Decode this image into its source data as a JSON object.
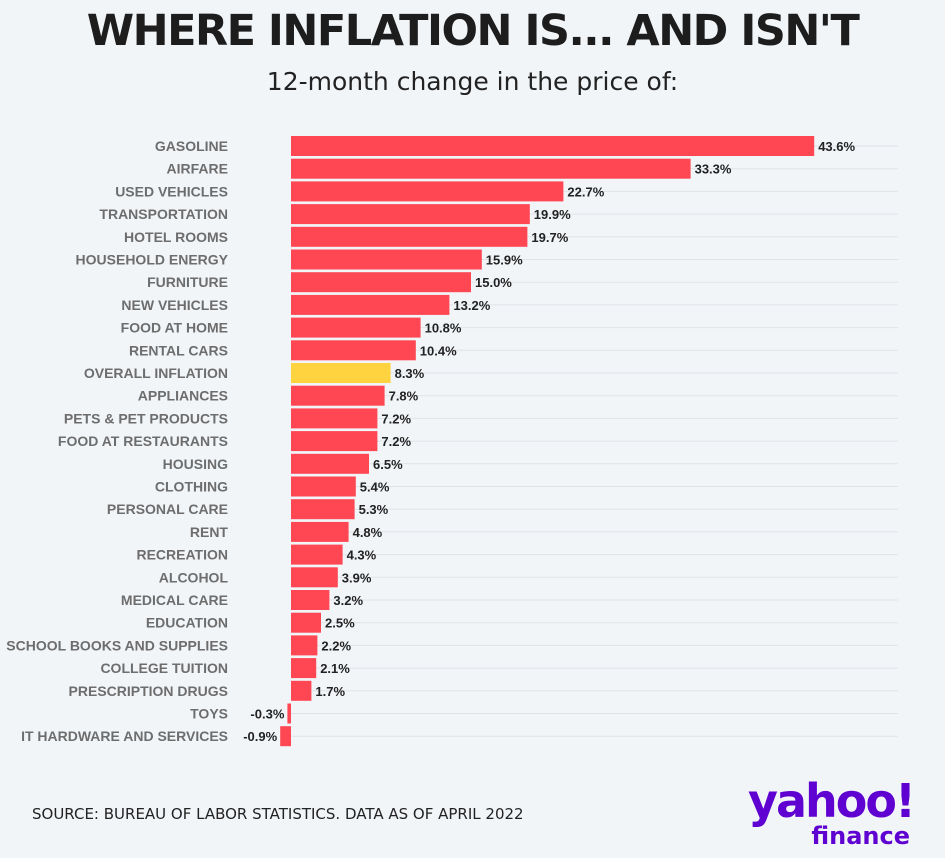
{
  "header": {
    "title": "WHERE INFLATION IS... AND ISN'T",
    "subtitle": "12-month change in the price of:"
  },
  "footer": {
    "source": "SOURCE: BUREAU OF LABOR STATISTICS. DATA AS OF APRIL 2022"
  },
  "logo": {
    "yahoo": "yahoo!",
    "finance": "finance",
    "color": "#5f01d1"
  },
  "chart_data": {
    "type": "bar",
    "orientation": "horizontal",
    "title": "WHERE INFLATION IS... AND ISN'T",
    "subtitle": "12-month change in the price of:",
    "xlabel": "",
    "ylabel": "",
    "grid": true,
    "highlight_category": "OVERALL INFLATION",
    "colors": {
      "bar": "#ff4754",
      "highlight": "#ffd23f",
      "grid": "#dfe3e8"
    },
    "categories": [
      "GASOLINE",
      "AIRFARE",
      "USED VEHICLES",
      "TRANSPORTATION",
      "HOTEL ROOMS",
      "HOUSEHOLD ENERGY",
      "FURNITURE",
      "NEW VEHICLES",
      "FOOD AT HOME",
      "RENTAL CARS",
      "OVERALL INFLATION",
      "APPLIANCES",
      "PETS & PET PRODUCTS",
      "FOOD AT RESTAURANTS",
      "HOUSING",
      "CLOTHING",
      "PERSONAL CARE",
      "RENT",
      "RECREATION",
      "ALCOHOL",
      "MEDICAL CARE",
      "EDUCATION",
      "SCHOOL BOOKS AND SUPPLIES",
      "COLLEGE TUITION",
      "PRESCRIPTION DRUGS",
      "TOYS",
      "IT HARDWARE AND SERVICES"
    ],
    "values": [
      43.6,
      33.3,
      22.7,
      19.9,
      19.7,
      15.9,
      15.0,
      13.2,
      10.8,
      10.4,
      8.3,
      7.8,
      7.2,
      7.2,
      6.5,
      5.4,
      5.3,
      4.8,
      4.3,
      3.9,
      3.2,
      2.5,
      2.2,
      2.1,
      1.7,
      -0.3,
      -0.9
    ],
    "data_labels": [
      "43.6%",
      "33.3%",
      "22.7%",
      "19.9%",
      "19.7%",
      "15.9%",
      "15.0%",
      "13.2%",
      "10.8%",
      "10.4%",
      "8.3%",
      "7.8%",
      "7.2%",
      "7.2%",
      "6.5%",
      "5.4%",
      "5.3%",
      "4.8%",
      "4.3%",
      "3.9%",
      "3.2%",
      "2.5%",
      "2.2%",
      "2.1%",
      "1.7%",
      "-0.3%",
      "-0.9%"
    ]
  }
}
